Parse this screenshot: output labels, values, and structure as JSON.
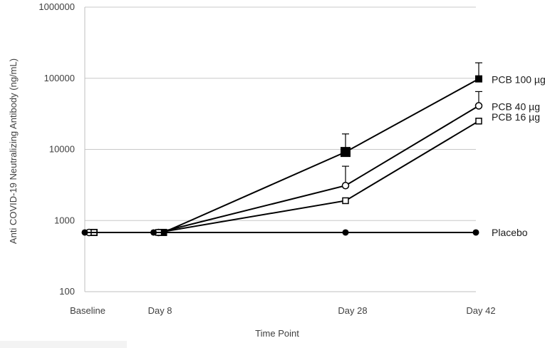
{
  "chart_data": {
    "type": "line",
    "title": "",
    "xlabel": "Time Point",
    "ylabel": "Anti COVID-19 Neutralizing Antibody (ng/mL)",
    "yscale": "log",
    "ylim": [
      100,
      1000000
    ],
    "yticks": [
      "100",
      "1000",
      "10000",
      "100000",
      "1000000"
    ],
    "categories": [
      "Baseline",
      "Day 8",
      "Day 28",
      "Day 42"
    ],
    "x_days": [
      0,
      8,
      28,
      42
    ],
    "grid": "horizontal",
    "legend": "inline labels at right end of each line",
    "series": [
      {
        "name": "PCB 100 µg",
        "marker": "filled-square",
        "values": [
          680,
          680,
          9200,
          98000
        ],
        "error_upper": [
          null,
          null,
          16500,
          165000
        ]
      },
      {
        "name": "PCB 40 µg",
        "marker": "open-circle",
        "values": [
          680,
          680,
          3100,
          41000
        ],
        "error_upper": [
          null,
          null,
          5800,
          65000
        ]
      },
      {
        "name": "PCB 16 µg",
        "marker": "open-square",
        "values": [
          680,
          680,
          1900,
          25000
        ],
        "error_upper": [
          null,
          null,
          null,
          null
        ]
      },
      {
        "name": "Placebo",
        "marker": "filled-circle",
        "values": [
          680,
          680,
          680,
          680
        ],
        "error_upper": [
          null,
          null,
          null,
          null
        ]
      }
    ]
  }
}
